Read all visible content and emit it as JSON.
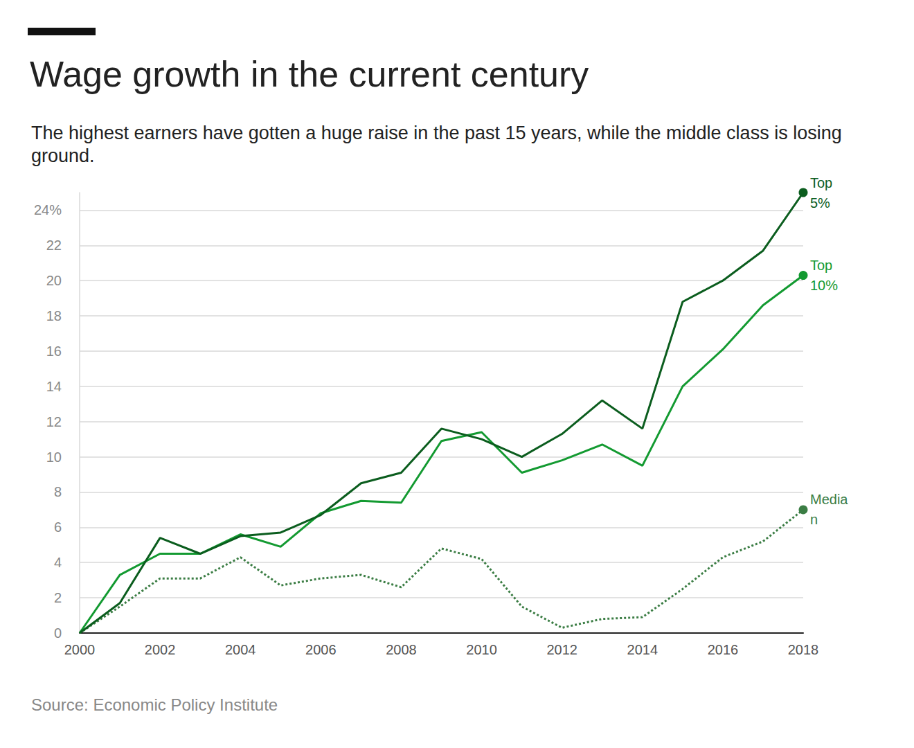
{
  "chart_data": {
    "type": "line",
    "title": "Wage growth in the current century",
    "subtitle": "The highest earners have gotten a huge raise in the past 15 years, while the middle class is losing ground.",
    "source": "Source: Economic Policy Institute",
    "x": [
      2000,
      2001,
      2002,
      2003,
      2004,
      2005,
      2006,
      2007,
      2008,
      2009,
      2010,
      2011,
      2012,
      2013,
      2014,
      2015,
      2016,
      2017,
      2018
    ],
    "series": [
      {
        "name": "Top 5%",
        "color": "#0b5d1e",
        "line_style": "solid",
        "marker": "circle",
        "values": [
          0,
          1.7,
          5.4,
          4.5,
          5.5,
          5.7,
          6.7,
          8.5,
          9.1,
          11.6,
          11.0,
          10.0,
          11.3,
          13.2,
          11.6,
          18.8,
          20.0,
          21.7,
          25.0
        ]
      },
      {
        "name": "Top 10%",
        "color": "#139a31",
        "line_style": "solid",
        "marker": "circle",
        "values": [
          0,
          3.3,
          4.5,
          4.5,
          5.6,
          4.9,
          6.8,
          7.5,
          7.4,
          10.9,
          11.4,
          9.1,
          9.8,
          10.7,
          9.5,
          14.0,
          16.1,
          18.6,
          20.3
        ]
      },
      {
        "name": "Median",
        "color": "#3b7d44",
        "line_style": "dotted",
        "marker": "circle",
        "values": [
          0,
          1.5,
          3.1,
          3.1,
          4.3,
          2.7,
          3.1,
          3.3,
          2.6,
          4.8,
          4.2,
          1.5,
          0.3,
          0.8,
          0.9,
          2.5,
          4.3,
          5.2,
          7.0
        ]
      }
    ],
    "xlim": [
      2000,
      2018
    ],
    "xticks": [
      2000,
      2002,
      2004,
      2006,
      2008,
      2010,
      2012,
      2014,
      2016,
      2018
    ],
    "ylim": [
      0,
      25
    ],
    "yticks": [
      0,
      2,
      4,
      6,
      8,
      10,
      12,
      14,
      16,
      18,
      20,
      22,
      {
        "value": 24,
        "label": "24%"
      }
    ],
    "grid": true
  }
}
